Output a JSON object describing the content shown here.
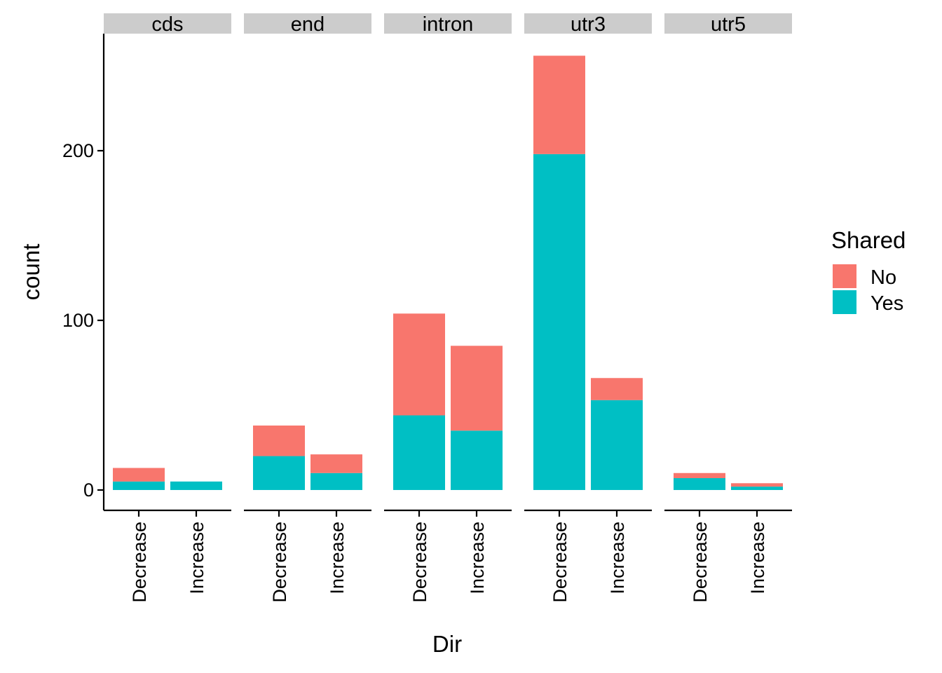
{
  "chart_data": {
    "type": "bar",
    "stacked": true,
    "facet_by": "region",
    "facets": [
      "cds",
      "end",
      "intron",
      "utr3",
      "utr5"
    ],
    "categories": [
      "Decrease",
      "Increase"
    ],
    "series": [
      {
        "name": "No",
        "color": "#F8766D",
        "values": {
          "cds": [
            8,
            0
          ],
          "end": [
            18,
            11
          ],
          "intron": [
            60,
            50
          ],
          "utr3": [
            58,
            13
          ],
          "utr5": [
            3,
            2
          ]
        }
      },
      {
        "name": "Yes",
        "color": "#00BFC4",
        "values": {
          "cds": [
            5,
            5
          ],
          "end": [
            20,
            10
          ],
          "intron": [
            44,
            35
          ],
          "utr3": [
            198,
            53
          ],
          "utr5": [
            7,
            2
          ]
        }
      }
    ],
    "xlabel": "Dir",
    "ylabel": "count",
    "ylim": [
      -12,
      269
    ],
    "yticks": [
      0,
      100,
      200
    ],
    "legend": {
      "title": "Shared",
      "position": "right"
    },
    "strip_color": "#CCCCCC"
  }
}
